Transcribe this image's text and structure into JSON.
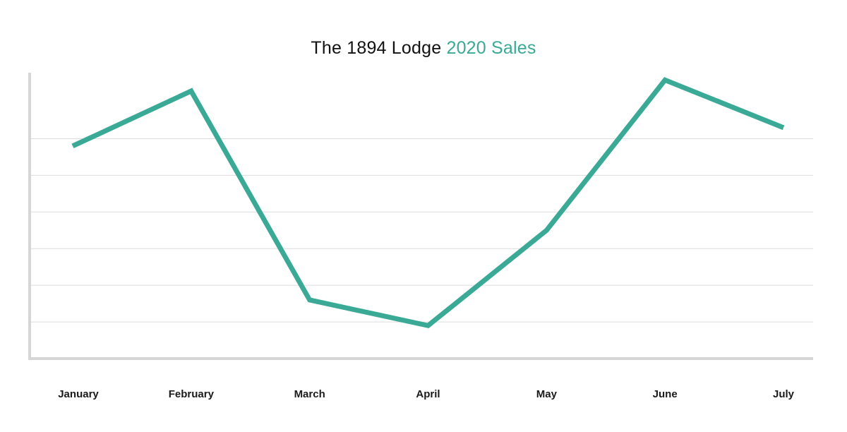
{
  "chart_data": {
    "type": "line",
    "title": "The 1894 Lodge",
    "title_highlight": "2020 Sales",
    "categories": [
      "January",
      "February",
      "March",
      "April",
      "May",
      "June",
      "July"
    ],
    "series": [
      {
        "values": [
          5.8,
          7.3,
          1.6,
          0.9,
          3.5,
          7.6,
          6.3
        ]
      }
    ],
    "xlabel": "",
    "ylabel": "",
    "ylim": [
      0,
      7.8
    ],
    "gridlines_y": [
      1,
      2,
      3,
      4,
      5,
      6
    ],
    "grid": true,
    "y_tick_labels_shown": false,
    "legend": "none"
  },
  "colors": {
    "line": "#3aaa96",
    "title_accent": "#3aaa96",
    "grid": "#dcdcdc",
    "axis": "#d6d6d6",
    "text": "#111111"
  }
}
